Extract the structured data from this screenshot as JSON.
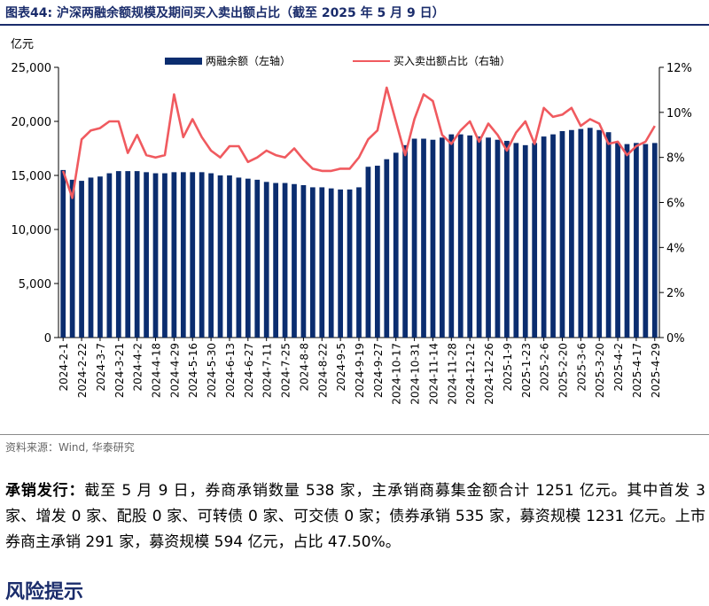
{
  "figure": {
    "title": "图表44:  沪深两融余额规模及期间买入卖出额占比（截至 2025 年 5 月 9 日）",
    "source": "资料来源：Wind, 华泰研究"
  },
  "colors": {
    "bar": "#0b2d6f",
    "line": "#f05a5f",
    "title": "#1a2c6b"
  },
  "chart_data": {
    "type": "bar+line",
    "left_axis_unit": "亿元",
    "left_ylim": [
      0,
      25000
    ],
    "left_ticks": [
      "0",
      "5,000",
      "10,000",
      "15,000",
      "20,000",
      "25,000"
    ],
    "right_ylim": [
      0,
      12
    ],
    "right_ticks": [
      "0%",
      "2%",
      "4%",
      "6%",
      "8%",
      "10%",
      "12%"
    ],
    "x_tick_labels": [
      "2024-2-1",
      "2024-2-22",
      "2024-3-7",
      "2024-3-21",
      "2024-4-2",
      "2024-4-18",
      "2024-4-29",
      "2024-5-16",
      "2024-5-30",
      "2024-6-13",
      "2024-6-27",
      "2024-7-11",
      "2024-7-25",
      "2024-8-8",
      "2024-8-22",
      "2024-9-5",
      "2024-9-19",
      "2024-9-27",
      "2024-10-17",
      "2024-10-31",
      "2024-11-14",
      "2024-11-28",
      "2024-12-12",
      "2024-12-26",
      "2025-1-9",
      "2025-1-23",
      "2025-2-6",
      "2025-2-20",
      "2025-3-6",
      "2025-3-20",
      "2025-4-2",
      "2025-4-17",
      "2025-4-29"
    ],
    "series": [
      {
        "name": "两融余额（左轴）",
        "type": "bar",
        "values": [
          15500,
          14600,
          14500,
          14800,
          14900,
          15200,
          15400,
          15400,
          15400,
          15300,
          15200,
          15200,
          15300,
          15300,
          15300,
          15300,
          15200,
          15000,
          15000,
          14800,
          14700,
          14600,
          14400,
          14300,
          14300,
          14200,
          14100,
          13900,
          13900,
          13800,
          13700,
          13700,
          13900,
          15800,
          15900,
          16500,
          17100,
          17800,
          18400,
          18400,
          18300,
          18500,
          18800,
          18800,
          18700,
          18600,
          18500,
          18300,
          18200,
          18000,
          17800,
          18000,
          18600,
          18800,
          19100,
          19200,
          19300,
          19400,
          19200,
          19000,
          18000,
          17900,
          18000,
          17900,
          18000
        ]
      },
      {
        "name": "买入卖出额占比（右轴）",
        "type": "line",
        "values": [
          7.4,
          6.2,
          8.8,
          9.2,
          9.3,
          9.6,
          9.6,
          8.2,
          9.0,
          8.1,
          8.0,
          8.1,
          10.8,
          8.9,
          9.7,
          8.9,
          8.3,
          8.0,
          8.5,
          8.5,
          7.8,
          8.0,
          8.3,
          8.1,
          8.0,
          8.4,
          7.9,
          7.5,
          7.4,
          7.4,
          7.5,
          7.5,
          8.0,
          8.8,
          9.2,
          11.1,
          9.6,
          8.1,
          9.7,
          10.8,
          10.5,
          9.0,
          8.6,
          9.2,
          9.6,
          8.7,
          9.5,
          9.0,
          8.3,
          9.1,
          9.6,
          8.6,
          10.2,
          9.8,
          9.9,
          10.2,
          9.4,
          9.7,
          9.5,
          8.6,
          8.7,
          8.1,
          8.5,
          8.7,
          9.4
        ]
      }
    ]
  },
  "body": {
    "lead": "承销发行：",
    "text": "截至 5 月 9 日，券商承销数量 538 家，主承销商募集金额合计 1251 亿元。其中首发 3 家、增发 0 家、配股 0 家、可转债 0 家、可交债 0 家；债券承销 535 家，募资规模 1231 亿元。上市券商主承销 291 家，募资规模 594 亿元，占比 47.50%。"
  },
  "section_title": "风险提示"
}
